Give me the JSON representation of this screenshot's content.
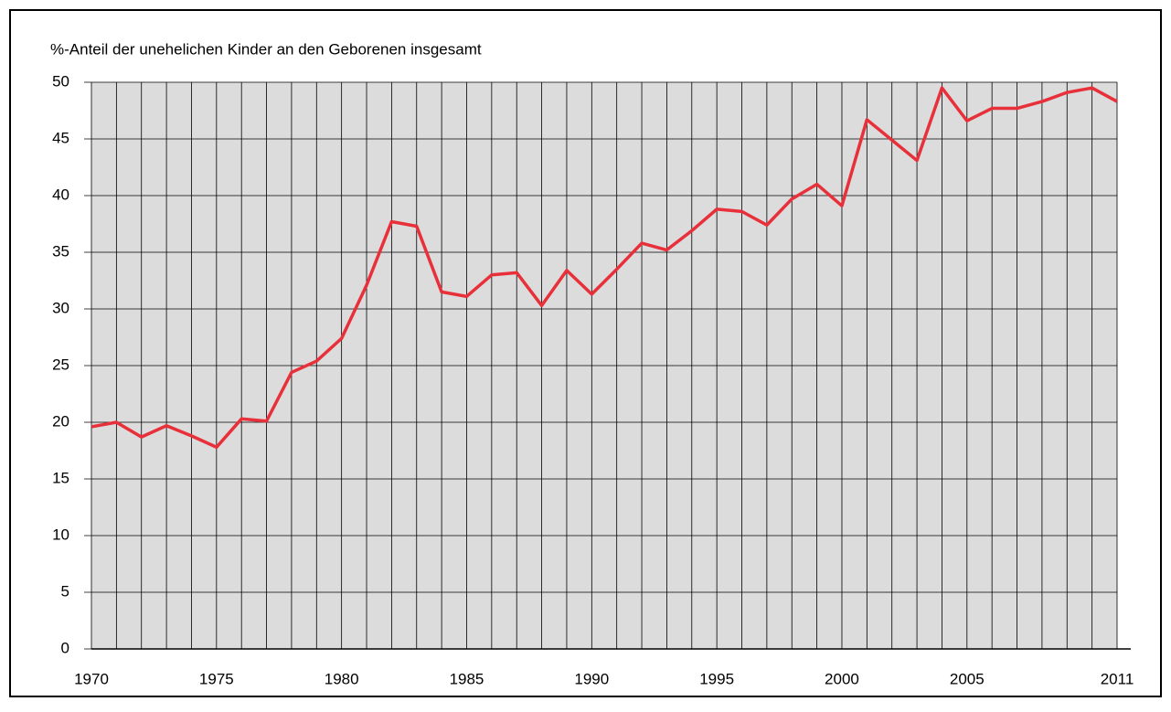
{
  "chart_data": {
    "type": "line",
    "title": "%-Anteil der unehelichen Kinder an den Geborenen insgesamt",
    "x": [
      1970,
      1971,
      1972,
      1973,
      1974,
      1975,
      1976,
      1977,
      1978,
      1979,
      1980,
      1981,
      1982,
      1983,
      1984,
      1985,
      1986,
      1987,
      1988,
      1989,
      1990,
      1991,
      1992,
      1993,
      1994,
      1995,
      1996,
      1997,
      1998,
      1999,
      2000,
      2001,
      2002,
      2003,
      2004,
      2005,
      2006,
      2007,
      2008,
      2009,
      2010,
      2011
    ],
    "series": [
      {
        "color": "#e8303a",
        "values": [
          19.6,
          20.0,
          18.7,
          19.7,
          18.8,
          17.8,
          20.3,
          20.1,
          24.4,
          25.4,
          27.4,
          32.1,
          37.7,
          37.3,
          31.5,
          31.1,
          33.0,
          33.2,
          30.3,
          33.4,
          31.3,
          33.5,
          35.8,
          35.2,
          36.9,
          38.8,
          38.6,
          37.4,
          39.7,
          41.0,
          39.1,
          46.7,
          44.9,
          43.1,
          49.5,
          46.6,
          47.7,
          47.7,
          48.3,
          49.1,
          49.5,
          48.3
        ]
      }
    ],
    "xlim": [
      1970,
      2011
    ],
    "xticks": [
      1970,
      1975,
      1980,
      1985,
      1990,
      1995,
      2000,
      2005,
      2011
    ],
    "ylim": [
      0,
      50
    ],
    "yticks": [
      0,
      5,
      10,
      15,
      20,
      25,
      30,
      35,
      40,
      45,
      50
    ],
    "grid": true
  }
}
